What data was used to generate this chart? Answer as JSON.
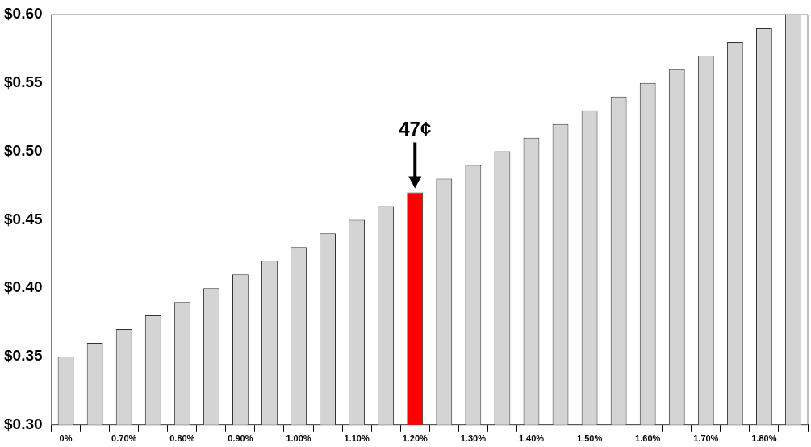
{
  "chart_data": {
    "type": "bar",
    "categories": [
      "0%",
      null,
      "0.70%",
      null,
      "0.80%",
      null,
      "0.90%",
      null,
      "1.00%",
      null,
      "1.10%",
      null,
      "1.20%",
      null,
      "1.30%",
      null,
      "1.40%",
      null,
      "1.50%",
      null,
      "1.60%",
      null,
      "1.70%",
      null,
      "1.80%",
      null
    ],
    "values": [
      0.35,
      0.36,
      0.37,
      0.38,
      0.39,
      0.4,
      0.41,
      0.42,
      0.43,
      0.44,
      0.45,
      0.46,
      0.47,
      0.48,
      0.49,
      0.5,
      0.51,
      0.52,
      0.53,
      0.54,
      0.55,
      0.56,
      0.57,
      0.58,
      0.59,
      0.6
    ],
    "colors": [
      "#d4d4d4",
      "#d4d4d4",
      "#d4d4d4",
      "#d4d4d4",
      "#d4d4d4",
      "#d4d4d4",
      "#d4d4d4",
      "#d4d4d4",
      "#d4d4d4",
      "#d4d4d4",
      "#d4d4d4",
      "#d4d4d4",
      "#ff0000",
      "#d4d4d4",
      "#d4d4d4",
      "#d4d4d4",
      "#d4d4d4",
      "#d4d4d4",
      "#d4d4d4",
      "#d4d4d4",
      "#d4d4d4",
      "#d4d4d4",
      "#d4d4d4",
      "#d4d4d4",
      "#d4d4d4",
      "#d4d4d4"
    ],
    "ylim": [
      0.3,
      0.6
    ],
    "yticks": [
      {
        "value": 0.3,
        "label": "$0.30"
      },
      {
        "value": 0.35,
        "label": "$0.35"
      },
      {
        "value": 0.4,
        "label": "$0.40"
      },
      {
        "value": 0.45,
        "label": "$0.45"
      },
      {
        "value": 0.5,
        "label": "$0.50"
      },
      {
        "value": 0.55,
        "label": "$0.55"
      },
      {
        "value": 0.6,
        "label": "$0.60"
      }
    ],
    "annotations": [
      {
        "text": "47¢",
        "x": "1.20%",
        "y": 0.47
      }
    ],
    "grid": false,
    "legend": false
  }
}
